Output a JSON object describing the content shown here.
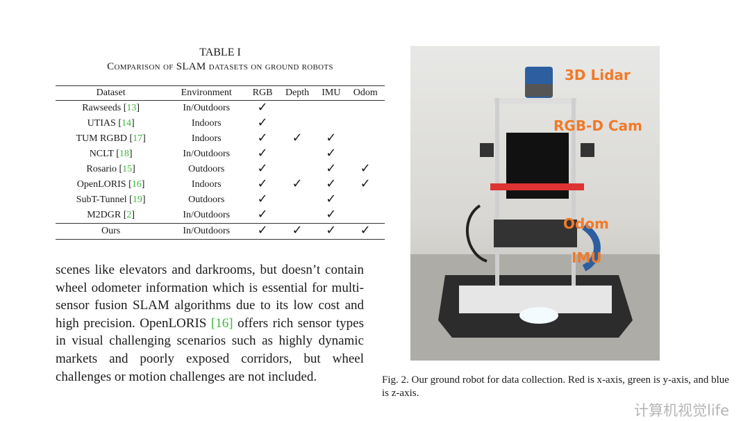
{
  "table": {
    "title": "TABLE I",
    "subtitle": "Comparison of SLAM datasets on ground robots",
    "headers": [
      "Dataset",
      "Environment",
      "RGB",
      "Depth",
      "IMU",
      "Odom"
    ],
    "check_symbol": "✓",
    "rows": [
      {
        "name": "Rawseeds",
        "ref": "13",
        "env": "In/Outdoors",
        "rgb": true,
        "depth": false,
        "imu": false,
        "odom": false
      },
      {
        "name": "UTIAS",
        "ref": "14",
        "env": "Indoors",
        "rgb": true,
        "depth": false,
        "imu": false,
        "odom": false
      },
      {
        "name": "TUM RGBD",
        "ref": "17",
        "env": "Indoors",
        "rgb": true,
        "depth": true,
        "imu": true,
        "odom": false
      },
      {
        "name": "NCLT",
        "ref": "18",
        "env": "In/Outdoors",
        "rgb": true,
        "depth": false,
        "imu": true,
        "odom": false
      },
      {
        "name": "Rosario",
        "ref": "15",
        "env": "Outdoors",
        "rgb": true,
        "depth": false,
        "imu": true,
        "odom": true
      },
      {
        "name": "OpenLORIS",
        "ref": "16",
        "env": "Indoors",
        "rgb": true,
        "depth": true,
        "imu": true,
        "odom": true
      },
      {
        "name": "SubT-Tunnel",
        "ref": "19",
        "env": "Outdoors",
        "rgb": true,
        "depth": false,
        "imu": true,
        "odom": false
      },
      {
        "name": "M2DGR",
        "ref": "2",
        "env": "In/Outdoors",
        "rgb": true,
        "depth": false,
        "imu": true,
        "odom": false
      }
    ],
    "ours": {
      "name": "Ours",
      "env": "In/Outdoors",
      "rgb": true,
      "depth": true,
      "imu": true,
      "odom": true
    }
  },
  "ref_color": "#3bb83b",
  "body_text": {
    "part1": "scenes like elevators and darkrooms, but doesn’t contain wheel odometer information which is essential for multi-sensor fusion SLAM algorithms due to its low cost and high precision. OpenLORIS ",
    "ref": "[16]",
    "part2": " offers rich sensor types in visual challenging scenarios such as highly dynamic markets and poorly exposed corridors, but wheel challenges or motion challenges are not included."
  },
  "figure": {
    "labels": {
      "lidar": "3D Lidar",
      "cam": "RGB-D Cam",
      "odom": "Odom",
      "imu": "IMU"
    },
    "label_color": "#f07a2a",
    "caption": "Fig. 2.  Our ground robot for data collection. Red is x-axis, green is y-axis, and blue is z-axis."
  },
  "watermark": "计算机视觉life"
}
